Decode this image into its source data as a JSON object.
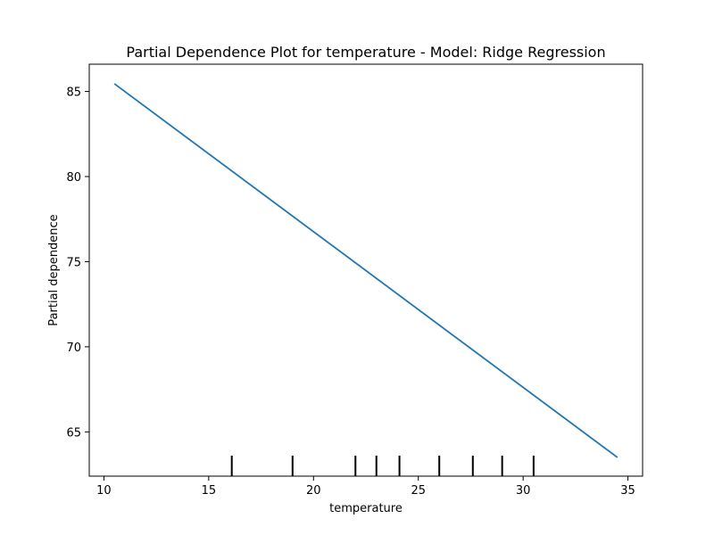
{
  "chart_data": {
    "type": "line",
    "title": "Partial Dependence Plot for temperature - Model: Ridge Regression",
    "xlabel": "temperature",
    "ylabel": "Partial dependence",
    "xlim": [
      9.3,
      35.7
    ],
    "ylim": [
      62.4,
      86.6
    ],
    "xticks": [
      10,
      15,
      20,
      25,
      30,
      35
    ],
    "yticks": [
      65,
      70,
      75,
      80,
      85
    ],
    "grid": false,
    "series": [
      {
        "x": [
          10.5,
          34.5
        ],
        "y": [
          85.45,
          63.5
        ],
        "color": "#1f77b4"
      }
    ],
    "deciles": [
      16.1,
      19.0,
      22.0,
      23.0,
      24.1,
      26.0,
      27.6,
      29.0,
      30.5
    ]
  }
}
